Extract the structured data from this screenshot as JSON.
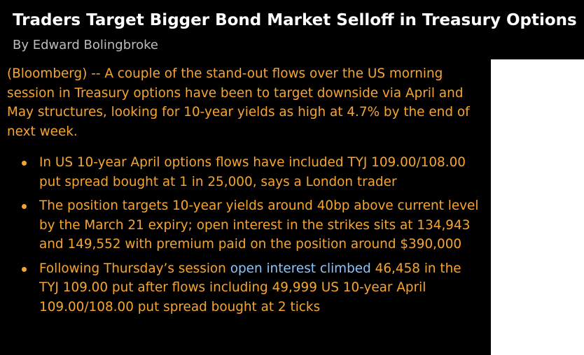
{
  "headline": "Traders Target Bigger Bond Market Selloff in Treasury Options",
  "byline": "By Edward Bolingbroke",
  "lede": "(Bloomberg) -- A couple of the stand-out flows over the US morning session in Treasury options have been to target downside via April and May structures, looking for 10-year yields as high at 4.7% by the end of next week.",
  "bullets": [
    {
      "text": "In US 10-year April options flows have included TYJ 109.00/108.00 put spread bought at 1 in 25,000, says a London trader"
    },
    {
      "text": "The position targets 10-year yields around 40bp above current level by the March 21 expiry; open interest in the strikes sits at 134,943 and 149,552 with premium paid on the position around $390,000"
    },
    {
      "before": "Following Thursday’s session",
      "link": "open interest climbed",
      "after": "46,458 in the TYJ 109.00 put after flows including 49,999 US 10-year April 109.00/108.00 put spread bought at 2 ticks"
    }
  ],
  "colors": {
    "background": "#000000",
    "body_text": "#f7a531",
    "headline": "#ffffff",
    "byline": "#bdbdbd",
    "link": "#8fc4f7",
    "panel": "#ffffff"
  }
}
